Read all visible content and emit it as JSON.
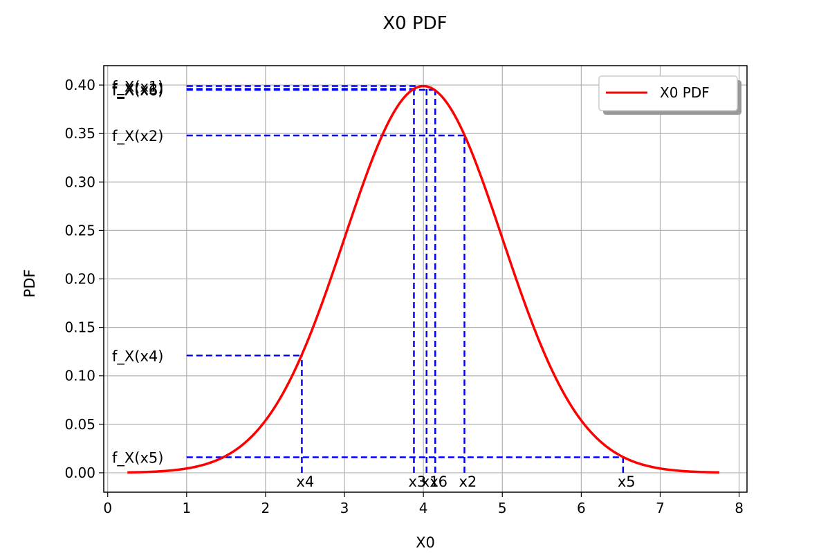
{
  "chart_data": {
    "type": "line",
    "title": "X0 PDF",
    "xlabel": "X0",
    "ylabel": "PDF",
    "xlim": [
      -0.05,
      8.1
    ],
    "ylim": [
      -0.02,
      0.42
    ],
    "x_ticks": [
      0,
      1,
      2,
      3,
      4,
      5,
      6,
      7,
      8
    ],
    "x_tick_labels": [
      "0",
      "1",
      "2",
      "3",
      "4",
      "5",
      "6",
      "7",
      "8"
    ],
    "y_ticks": [
      0.0,
      0.05,
      0.1,
      0.15,
      0.2,
      0.25,
      0.3,
      0.35,
      0.4
    ],
    "y_tick_labels": [
      "0.00",
      "0.05",
      "0.10",
      "0.15",
      "0.20",
      "0.25",
      "0.30",
      "0.35",
      "0.40"
    ],
    "grid": true,
    "legend_position": "upper-right",
    "series": [
      {
        "name": "X0 PDF",
        "color": "#ff0000",
        "distribution": "normal",
        "mean": 4.0,
        "std": 1.0,
        "x_range": [
          0.25,
          7.75
        ]
      }
    ],
    "points": [
      {
        "x_label": "x1",
        "f_label": "f_X(x1)",
        "x": 4.04,
        "f": 0.399
      },
      {
        "x_label": "x2",
        "f_label": "f_X(x2)",
        "x": 4.52,
        "f": 0.348
      },
      {
        "x_label": "x3",
        "f_label": "f_X(x3)",
        "x": 3.88,
        "f": 0.396
      },
      {
        "x_label": "x4",
        "f_label": "f_X(x4)",
        "x": 2.46,
        "f": 0.121
      },
      {
        "x_label": "x5",
        "f_label": "f_X(x5)",
        "x": 6.53,
        "f": 0.016
      },
      {
        "x_label": "x6",
        "f_label": "f_X(x6)",
        "x": 4.15,
        "f": 0.395
      }
    ],
    "guide_color": "#0000ff"
  }
}
